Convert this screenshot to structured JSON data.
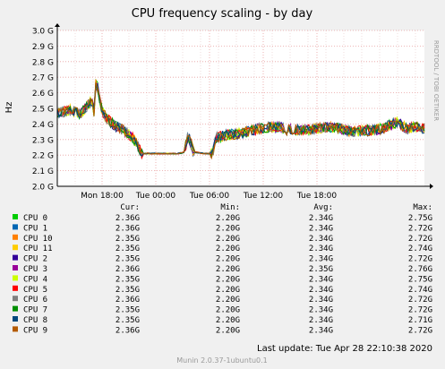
{
  "chart_data": {
    "type": "line",
    "title": "CPU frequency scaling - by day",
    "ylabel": "Hz",
    "ylim": [
      2.0,
      3.0
    ],
    "y_ticks": [
      "2.0 G",
      "2.1 G",
      "2.2 G",
      "2.3 G",
      "2.4 G",
      "2.5 G",
      "2.6 G",
      "2.7 G",
      "2.8 G",
      "2.9 G",
      "3.0 G"
    ],
    "x_ticks": [
      "Mon 18:00",
      "Tue 00:00",
      "Tue 06:00",
      "Tue 12:00",
      "Tue 18:00"
    ],
    "watermark": "RRDTOOL / TOBI OETIKER",
    "grid": true,
    "legend_headers": [
      "Cur:",
      "Min:",
      "Avg:",
      "Max:"
    ],
    "series": [
      {
        "name": "CPU 0",
        "color": "#00cc00",
        "cur": "2.36G",
        "min": "2.20G",
        "avg": "2.34G",
        "max": "2.75G"
      },
      {
        "name": "CPU 1",
        "color": "#0066b3",
        "cur": "2.36G",
        "min": "2.20G",
        "avg": "2.34G",
        "max": "2.72G"
      },
      {
        "name": "CPU 10",
        "color": "#ff8000",
        "cur": "2.35G",
        "min": "2.20G",
        "avg": "2.34G",
        "max": "2.72G"
      },
      {
        "name": "CPU 11",
        "color": "#ffcc00",
        "cur": "2.35G",
        "min": "2.20G",
        "avg": "2.34G",
        "max": "2.74G"
      },
      {
        "name": "CPU 2",
        "color": "#330099",
        "cur": "2.35G",
        "min": "2.20G",
        "avg": "2.34G",
        "max": "2.72G"
      },
      {
        "name": "CPU 3",
        "color": "#990099",
        "cur": "2.36G",
        "min": "2.20G",
        "avg": "2.35G",
        "max": "2.76G"
      },
      {
        "name": "CPU 4",
        "color": "#ccff00",
        "cur": "2.35G",
        "min": "2.20G",
        "avg": "2.34G",
        "max": "2.75G"
      },
      {
        "name": "CPU 5",
        "color": "#ff0000",
        "cur": "2.35G",
        "min": "2.20G",
        "avg": "2.34G",
        "max": "2.74G"
      },
      {
        "name": "CPU 6",
        "color": "#808080",
        "cur": "2.36G",
        "min": "2.20G",
        "avg": "2.34G",
        "max": "2.72G"
      },
      {
        "name": "CPU 7",
        "color": "#008f00",
        "cur": "2.35G",
        "min": "2.20G",
        "avg": "2.34G",
        "max": "2.72G"
      },
      {
        "name": "CPU 8",
        "color": "#00487d",
        "cur": "2.35G",
        "min": "2.20G",
        "avg": "2.34G",
        "max": "2.71G"
      },
      {
        "name": "CPU 9",
        "color": "#b35a00",
        "cur": "2.36G",
        "min": "2.20G",
        "avg": "2.34G",
        "max": "2.72G"
      }
    ],
    "profile": {
      "x_hours": [
        0,
        1.5,
        2.6,
        3.2,
        3.9,
        4.1,
        4.35,
        4.6,
        5.0,
        5.6,
        6.4,
        7.4,
        8.4,
        8.9,
        9.3,
        9.6,
        10.0,
        11.0,
        12.5,
        13.5,
        14.3,
        14.4,
        14.6,
        14.8,
        15.2,
        16.5,
        17.3,
        17.5,
        17.7,
        19.0,
        20.5,
        22.5,
        23.5,
        25.0,
        25.5,
        26.0,
        27.0,
        29.0,
        30.0,
        31.0,
        33.0,
        35.0,
        36.5,
        37.0,
        38.0,
        39.0,
        40.0,
        41.0
      ],
      "y_ghz": [
        2.47,
        2.49,
        2.46,
        2.51,
        2.55,
        2.48,
        2.69,
        2.6,
        2.48,
        2.43,
        2.39,
        2.36,
        2.31,
        2.27,
        2.22,
        2.21,
        2.21,
        2.21,
        2.21,
        2.21,
        2.22,
        2.3,
        2.32,
        2.3,
        2.22,
        2.21,
        2.21,
        2.25,
        2.31,
        2.33,
        2.34,
        2.37,
        2.38,
        2.38,
        2.36,
        2.37,
        2.36,
        2.37,
        2.38,
        2.38,
        2.35,
        2.36,
        2.37,
        2.39,
        2.41,
        2.37,
        2.38,
        2.37
      ]
    },
    "last_update": "Last update: Tue Apr 28 22:10:38 2020",
    "footer": "Munin 2.0.37-1ubuntu0.1"
  }
}
